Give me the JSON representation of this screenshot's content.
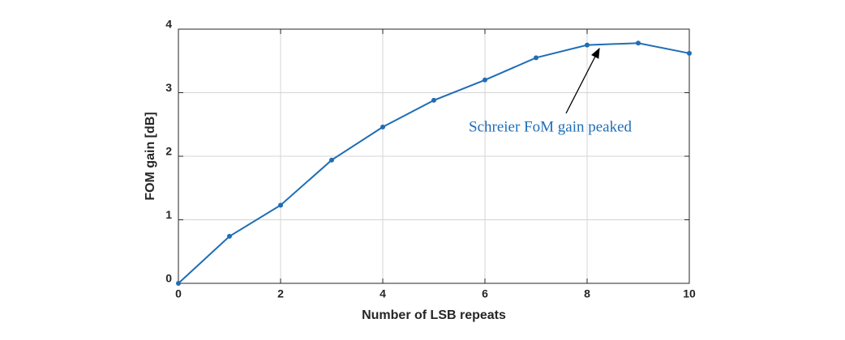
{
  "chart_data": {
    "type": "line",
    "x_label": "Number of LSB repeats",
    "y_label": "FOM gain [dB]",
    "annotation": "Schreier FoM gain peaked",
    "x": [
      0,
      1,
      2,
      3,
      4,
      5,
      6,
      7,
      8,
      9,
      10
    ],
    "series": [
      {
        "name": "FOM gain",
        "color": "#1f6db5",
        "values": [
          0,
          0.74,
          1.23,
          1.94,
          2.46,
          2.88,
          3.2,
          3.55,
          3.75,
          3.78,
          3.62
        ]
      }
    ],
    "xlim": [
      0,
      10
    ],
    "xticks": [
      0,
      2,
      4,
      6,
      8,
      10
    ],
    "ylim": [
      0,
      4
    ],
    "yticks": [
      0,
      1,
      2,
      3,
      4
    ],
    "grid": true
  }
}
